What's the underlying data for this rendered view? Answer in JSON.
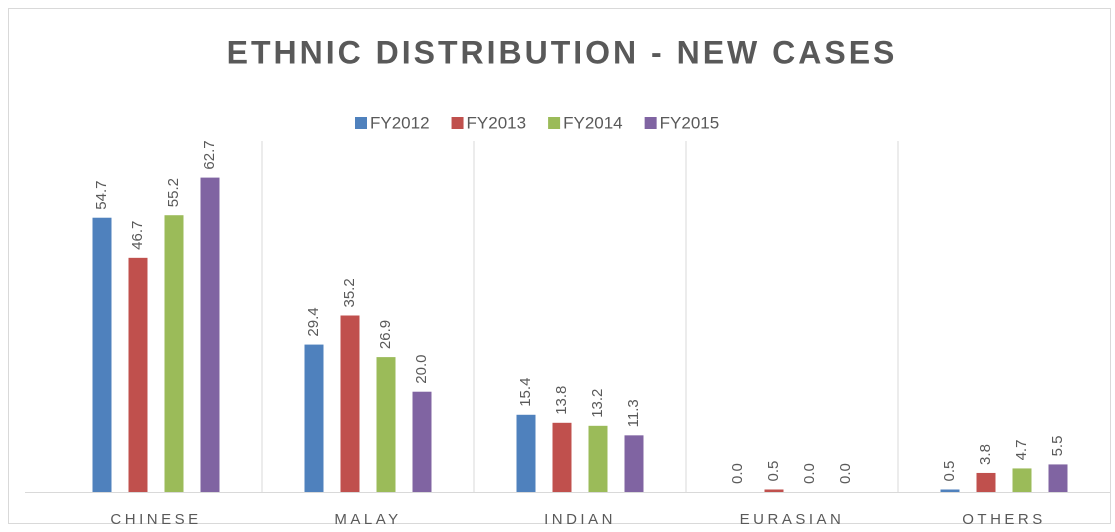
{
  "chart_data": {
    "type": "bar",
    "title": "ETHNIC DISTRIBUTION - NEW CASES",
    "categories": [
      "CHINESE",
      "MALAY",
      "INDIAN",
      "EURASIAN",
      "OTHERS"
    ],
    "series": [
      {
        "name": "FY2012",
        "color": "#4f81bd",
        "values": [
          54.7,
          29.4,
          15.4,
          0,
          0.5
        ],
        "value_labels": [
          "54.7",
          "29.4",
          "15.4",
          "0.0",
          "0.5"
        ]
      },
      {
        "name": "FY2013",
        "color": "#c0504d",
        "values": [
          46.7,
          35.2,
          13.8,
          0.5,
          3.8
        ],
        "value_labels": [
          "46.7",
          "35.2",
          "13.8",
          "0.5",
          "3.8"
        ]
      },
      {
        "name": "FY2014",
        "color": "#9bbb59",
        "values": [
          55.2,
          26.9,
          13.2,
          0,
          4.7
        ],
        "value_labels": [
          "55.2",
          "26.9",
          "13.2",
          "0.0",
          "4.7"
        ]
      },
      {
        "name": "FY2015",
        "color": "#8064a2",
        "values": [
          62.7,
          20,
          11.3,
          0,
          5.5
        ],
        "value_labels": [
          "62.7",
          "20.0",
          "11.3",
          "0.0",
          "5.5"
        ]
      }
    ],
    "ylim": [
      0,
      70
    ],
    "legend": "top"
  }
}
